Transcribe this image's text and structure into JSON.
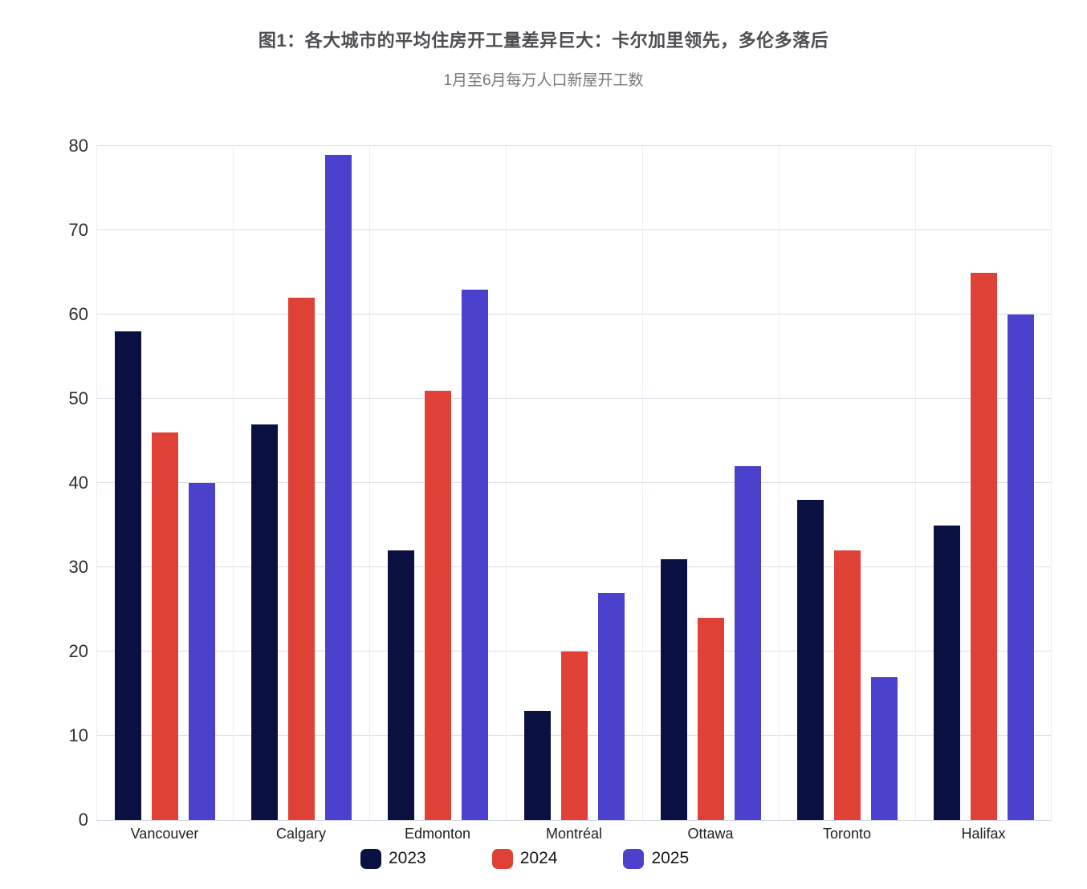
{
  "chart_data": {
    "type": "bar",
    "title": "图1：各大城市的平均住房开工量差异巨大：卡尔加里领先，多伦多落后",
    "subtitle": "1月至6月每万人口新屋开工数",
    "categories": [
      "Vancouver",
      "Calgary",
      "Edmonton",
      "Montréal",
      "Ottawa",
      "Toronto",
      "Halifax"
    ],
    "series": [
      {
        "name": "2023",
        "color": "#0a1140",
        "values": [
          58,
          47,
          32,
          13,
          31,
          38,
          35
        ]
      },
      {
        "name": "2024",
        "color": "#df4137",
        "values": [
          46,
          62,
          51,
          20,
          24,
          32,
          65
        ]
      },
      {
        "name": "2025",
        "color": "#4b41cd",
        "values": [
          40,
          79,
          63,
          27,
          42,
          17,
          60
        ]
      }
    ],
    "xlabel": "",
    "ylabel": "",
    "ylim": [
      0,
      80
    ],
    "yticks": [
      0,
      10,
      20,
      30,
      40,
      50,
      60,
      70,
      80
    ],
    "grid": true,
    "legend_position": "bottom",
    "colors": {
      "background": "#ffffff",
      "hgrid": "#dddce6",
      "vgrid": "#eeedf5",
      "axis": "#d2d1df",
      "title": "#4e4e52",
      "subtitle": "#77777b",
      "tick": "#2e2e33"
    }
  }
}
